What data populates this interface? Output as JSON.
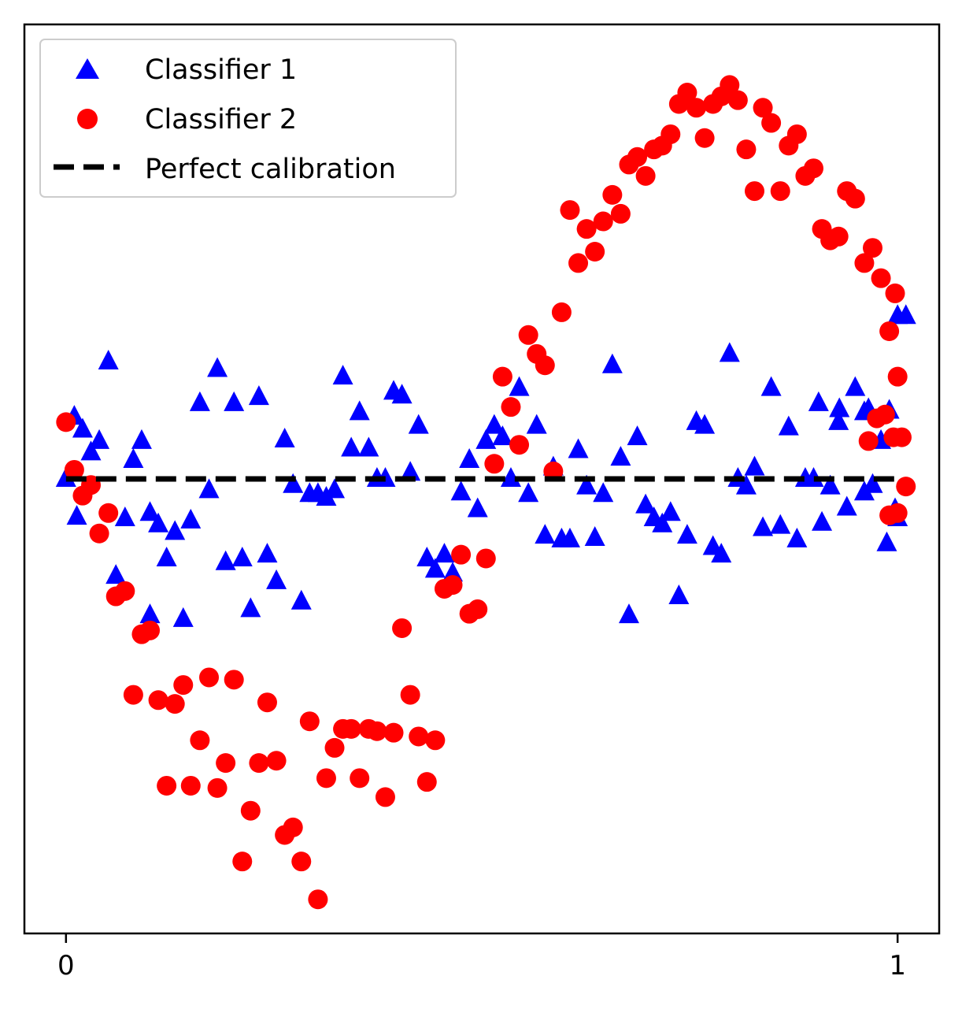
{
  "chart_data": {
    "type": "scatter",
    "title": "",
    "xlabel": "",
    "ylabel": "",
    "xlim": [
      -0.05,
      1.05
    ],
    "ylim": [
      -0.6,
      0.6
    ],
    "x_ticks": [
      {
        "value": 0,
        "label": "0"
      },
      {
        "value": 1,
        "label": "1"
      }
    ],
    "y_ticks": [],
    "grid": false,
    "legend_position": "top-left",
    "series": [
      {
        "name": "Classifier 1",
        "marker": "triangle",
        "color": "#0000ff",
        "points": [
          [
            0.0,
            0.0
          ],
          [
            0.01,
            0.082
          ],
          [
            0.02,
            0.065
          ],
          [
            0.03,
            0.035
          ],
          [
            0.04,
            0.05
          ],
          [
            0.051,
            0.155
          ],
          [
            0.06,
            -0.128
          ],
          [
            0.071,
            -0.052
          ],
          [
            0.081,
            0.025
          ],
          [
            0.091,
            0.05
          ],
          [
            0.101,
            -0.18
          ],
          [
            0.111,
            -0.06
          ],
          [
            0.121,
            -0.105
          ],
          [
            0.131,
            -0.07
          ],
          [
            0.141,
            -0.185
          ],
          [
            0.15,
            -0.055
          ],
          [
            0.161,
            0.1
          ],
          [
            0.172,
            -0.015
          ],
          [
            0.182,
            0.145
          ],
          [
            0.202,
            0.1
          ],
          [
            0.192,
            -0.11
          ],
          [
            0.212,
            -0.105
          ],
          [
            0.222,
            -0.172
          ],
          [
            0.232,
            0.108
          ],
          [
            0.242,
            -0.1
          ],
          [
            0.253,
            -0.135
          ],
          [
            0.263,
            0.052
          ],
          [
            0.273,
            -0.008
          ],
          [
            0.283,
            -0.162
          ],
          [
            0.293,
            -0.02
          ],
          [
            0.303,
            -0.02
          ],
          [
            0.313,
            -0.025
          ],
          [
            0.323,
            -0.015
          ],
          [
            0.333,
            0.135
          ],
          [
            0.343,
            0.04
          ],
          [
            0.353,
            0.088
          ],
          [
            0.364,
            0.04
          ],
          [
            0.374,
            0.0
          ],
          [
            0.384,
            0.0
          ],
          [
            0.394,
            0.115
          ],
          [
            0.404,
            0.11
          ],
          [
            0.414,
            0.008
          ],
          [
            0.424,
            0.07
          ],
          [
            0.434,
            -0.105
          ],
          [
            0.444,
            -0.12
          ],
          [
            0.455,
            -0.1
          ],
          [
            0.465,
            -0.125
          ],
          [
            0.475,
            -0.018
          ],
          [
            0.485,
            0.025
          ],
          [
            0.495,
            -0.04
          ],
          [
            0.505,
            0.05
          ],
          [
            0.515,
            0.07
          ],
          [
            0.525,
            0.055
          ],
          [
            0.535,
            -0.0
          ],
          [
            0.545,
            0.12
          ],
          [
            0.556,
            -0.02
          ],
          [
            0.566,
            0.07
          ],
          [
            0.576,
            -0.075
          ],
          [
            0.586,
            0.015
          ],
          [
            0.596,
            -0.08
          ],
          [
            0.606,
            -0.08
          ],
          [
            0.616,
            0.038
          ],
          [
            0.626,
            -0.01
          ],
          [
            0.636,
            -0.078
          ],
          [
            0.646,
            -0.02
          ],
          [
            0.657,
            0.15
          ],
          [
            0.667,
            0.028
          ],
          [
            0.677,
            -0.18
          ],
          [
            0.687,
            0.055
          ],
          [
            0.697,
            -0.035
          ],
          [
            0.707,
            -0.052
          ],
          [
            0.717,
            -0.06
          ],
          [
            0.727,
            -0.045
          ],
          [
            0.737,
            -0.155
          ],
          [
            0.747,
            -0.075
          ],
          [
            0.758,
            0.075
          ],
          [
            0.768,
            0.07
          ],
          [
            0.778,
            -0.09
          ],
          [
            0.788,
            -0.1
          ],
          [
            0.798,
            0.165
          ],
          [
            0.808,
            0.0
          ],
          [
            0.818,
            -0.01
          ],
          [
            0.828,
            0.015
          ],
          [
            0.838,
            -0.065
          ],
          [
            0.848,
            0.12
          ],
          [
            0.859,
            -0.062
          ],
          [
            0.869,
            0.068
          ],
          [
            0.879,
            -0.08
          ],
          [
            0.889,
            0.0
          ],
          [
            0.899,
            0.0
          ],
          [
            0.909,
            -0.058
          ],
          [
            0.919,
            -0.01
          ],
          [
            0.929,
            0.075
          ],
          [
            0.939,
            -0.038
          ],
          [
            0.949,
            0.12
          ],
          [
            0.96,
            -0.018
          ],
          [
            0.97,
            -0.008
          ],
          [
            0.98,
            0.05
          ],
          [
            0.99,
            0.09
          ],
          [
            0.965,
            0.092
          ],
          [
            0.997,
            -0.04
          ],
          [
            0.101,
            -0.045
          ],
          [
            1.0,
            0.215
          ],
          [
            1.01,
            0.215
          ],
          [
            0.96,
            0.088
          ],
          [
            0.93,
            0.092
          ],
          [
            0.905,
            0.1
          ],
          [
            0.987,
            -0.085
          ],
          [
            0.013,
            -0.05
          ],
          [
            1.0,
            -0.052
          ]
        ]
      },
      {
        "name": "Classifier 2",
        "marker": "circle",
        "color": "#ff0000",
        "points": [
          [
            0.0,
            0.075
          ],
          [
            0.01,
            0.012
          ],
          [
            0.02,
            -0.022
          ],
          [
            0.03,
            -0.008
          ],
          [
            0.04,
            -0.072
          ],
          [
            0.051,
            -0.045
          ],
          [
            0.06,
            -0.155
          ],
          [
            0.071,
            -0.148
          ],
          [
            0.081,
            -0.285
          ],
          [
            0.091,
            -0.205
          ],
          [
            0.101,
            -0.2
          ],
          [
            0.111,
            -0.292
          ],
          [
            0.121,
            -0.405
          ],
          [
            0.131,
            -0.297
          ],
          [
            0.141,
            -0.272
          ],
          [
            0.15,
            -0.405
          ],
          [
            0.161,
            -0.345
          ],
          [
            0.172,
            -0.262
          ],
          [
            0.182,
            -0.408
          ],
          [
            0.192,
            -0.375
          ],
          [
            0.202,
            -0.265
          ],
          [
            0.212,
            -0.505
          ],
          [
            0.222,
            -0.438
          ],
          [
            0.232,
            -0.375
          ],
          [
            0.242,
            -0.295
          ],
          [
            0.253,
            -0.372
          ],
          [
            0.263,
            -0.47
          ],
          [
            0.273,
            -0.46
          ],
          [
            0.283,
            -0.505
          ],
          [
            0.293,
            -0.32
          ],
          [
            0.303,
            -0.555
          ],
          [
            0.313,
            -0.395
          ],
          [
            0.323,
            -0.355
          ],
          [
            0.333,
            -0.33
          ],
          [
            0.343,
            -0.33
          ],
          [
            0.353,
            -0.395
          ],
          [
            0.364,
            -0.33
          ],
          [
            0.374,
            -0.333
          ],
          [
            0.384,
            -0.42
          ],
          [
            0.394,
            -0.335
          ],
          [
            0.404,
            -0.197
          ],
          [
            0.414,
            -0.285
          ],
          [
            0.424,
            -0.34
          ],
          [
            0.434,
            -0.4
          ],
          [
            0.444,
            -0.345
          ],
          [
            0.455,
            -0.145
          ],
          [
            0.465,
            -0.14
          ],
          [
            0.475,
            -0.1
          ],
          [
            0.485,
            -0.178
          ],
          [
            0.495,
            -0.172
          ],
          [
            0.505,
            -0.105
          ],
          [
            0.515,
            0.02
          ],
          [
            0.525,
            0.135
          ],
          [
            0.535,
            0.095
          ],
          [
            0.545,
            0.045
          ],
          [
            0.556,
            0.19
          ],
          [
            0.566,
            0.165
          ],
          [
            0.576,
            0.15
          ],
          [
            0.586,
            0.01
          ],
          [
            0.596,
            0.22
          ],
          [
            0.606,
            0.355
          ],
          [
            0.616,
            0.285
          ],
          [
            0.626,
            0.33
          ],
          [
            0.636,
            0.3
          ],
          [
            0.646,
            0.34
          ],
          [
            0.657,
            0.375
          ],
          [
            0.667,
            0.35
          ],
          [
            0.677,
            0.415
          ],
          [
            0.687,
            0.425
          ],
          [
            0.697,
            0.4
          ],
          [
            0.707,
            0.435
          ],
          [
            0.717,
            0.44
          ],
          [
            0.727,
            0.455
          ],
          [
            0.737,
            0.495
          ],
          [
            0.747,
            0.51
          ],
          [
            0.758,
            0.49
          ],
          [
            0.768,
            0.45
          ],
          [
            0.778,
            0.495
          ],
          [
            0.788,
            0.505
          ],
          [
            0.798,
            0.52
          ],
          [
            0.808,
            0.5
          ],
          [
            0.818,
            0.435
          ],
          [
            0.828,
            0.38
          ],
          [
            0.838,
            0.49
          ],
          [
            0.848,
            0.47
          ],
          [
            0.859,
            0.38
          ],
          [
            0.869,
            0.44
          ],
          [
            0.879,
            0.455
          ],
          [
            0.889,
            0.4
          ],
          [
            0.899,
            0.41
          ],
          [
            0.909,
            0.33
          ],
          [
            0.919,
            0.315
          ],
          [
            0.929,
            0.32
          ],
          [
            0.939,
            0.38
          ],
          [
            0.949,
            0.37
          ],
          [
            0.96,
            0.285
          ],
          [
            0.97,
            0.305
          ],
          [
            0.98,
            0.265
          ],
          [
            0.99,
            0.195
          ],
          [
            0.997,
            0.245
          ],
          [
            0.965,
            0.05
          ],
          [
            0.975,
            0.08
          ],
          [
            0.985,
            0.085
          ],
          [
            1.0,
            0.135
          ],
          [
            1.01,
            -0.01
          ],
          [
            0.995,
            0.055
          ],
          [
            1.005,
            0.055
          ],
          [
            1.0,
            -0.045
          ],
          [
            0.99,
            -0.048
          ]
        ]
      },
      {
        "name": "Perfect calibration",
        "type": "line",
        "style": "dashed",
        "color": "#000000",
        "x": [
          0,
          1
        ],
        "y": [
          0,
          0
        ]
      }
    ]
  }
}
